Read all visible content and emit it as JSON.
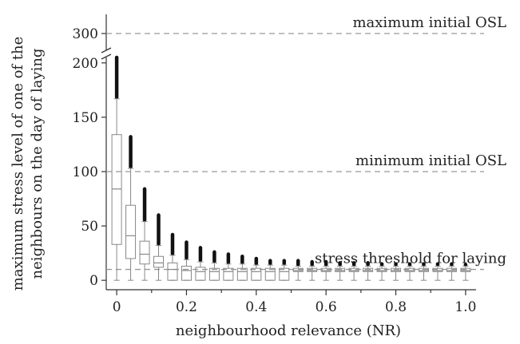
{
  "chart_data": {
    "type": "box",
    "xlabel": "neighbourhood relevance (NR)",
    "ylabel_lines": [
      "maximum stress level of one of the",
      "neighbours on the day of laying"
    ],
    "x_ticks": [
      "0",
      "0.2",
      "0.4",
      "0.6",
      "0.8",
      "1.0"
    ],
    "x_tick_values": [
      0,
      0.2,
      0.4,
      0.6,
      0.8,
      1.0
    ],
    "x_minor_ticks": [
      0.1,
      0.3,
      0.5,
      0.7,
      0.9
    ],
    "xlim": [
      -0.03,
      1.03
    ],
    "y_ticks_lower": [
      "0",
      "50",
      "100",
      "150",
      "200"
    ],
    "y_tick_values_lower": [
      0,
      50,
      100,
      150,
      200
    ],
    "ylim_lower": [
      -5,
      205
    ],
    "y_ticks_upper": [
      "300"
    ],
    "y_tick_values_upper": [
      300
    ],
    "ylim_upper": [
      290,
      315
    ],
    "axis_break": true,
    "reference_lines": [
      {
        "label": "maximum initial OSL",
        "value": 300,
        "panel": "upper"
      },
      {
        "label": "minimum initial OSL",
        "value": 100,
        "panel": "lower"
      },
      {
        "label": "stress threshold for laying",
        "value": 10,
        "panel": "lower"
      }
    ],
    "boxes": [
      {
        "x": 0.0,
        "whisker_low": 0,
        "q1": 33,
        "median": 84,
        "q3": 134,
        "whisker_high": 167,
        "outlier_max": 205
      },
      {
        "x": 0.04,
        "whisker_low": 0,
        "q1": 20,
        "median": 41,
        "q3": 69,
        "whisker_high": 103,
        "outlier_max": 132
      },
      {
        "x": 0.08,
        "whisker_low": 0,
        "q1": 15,
        "median": 24,
        "q3": 36,
        "whisker_high": 54,
        "outlier_max": 84
      },
      {
        "x": 0.12,
        "whisker_low": 0,
        "q1": 12,
        "median": 16,
        "q3": 22,
        "whisker_high": 32,
        "outlier_max": 60
      },
      {
        "x": 0.16,
        "whisker_low": 0,
        "q1": 0,
        "median": 10,
        "q3": 16,
        "whisker_high": 23,
        "outlier_max": 42
      },
      {
        "x": 0.2,
        "whisker_low": 0,
        "q1": 0,
        "median": 9,
        "q3": 13,
        "whisker_high": 19,
        "outlier_max": 35
      },
      {
        "x": 0.24,
        "whisker_low": 0,
        "q1": 0,
        "median": 8,
        "q3": 12,
        "whisker_high": 17,
        "outlier_max": 30
      },
      {
        "x": 0.28,
        "whisker_low": 0,
        "q1": 0,
        "median": 8,
        "q3": 11,
        "whisker_high": 16,
        "outlier_max": 26
      },
      {
        "x": 0.32,
        "whisker_low": 0,
        "q1": 0,
        "median": 8,
        "q3": 11,
        "whisker_high": 15,
        "outlier_max": 24
      },
      {
        "x": 0.36,
        "whisker_low": 0,
        "q1": 0,
        "median": 8,
        "q3": 11,
        "whisker_high": 15,
        "outlier_max": 22
      },
      {
        "x": 0.4,
        "whisker_low": 0,
        "q1": 0,
        "median": 8,
        "q3": 11,
        "whisker_high": 14,
        "outlier_max": 20
      },
      {
        "x": 0.44,
        "whisker_low": 0,
        "q1": 0,
        "median": 8,
        "q3": 11,
        "whisker_high": 14,
        "outlier_max": 18
      },
      {
        "x": 0.48,
        "whisker_low": 0,
        "q1": 0,
        "median": 8,
        "q3": 11,
        "whisker_high": 14,
        "outlier_max": 18
      },
      {
        "x": 0.52,
        "whisker_low": 0,
        "q1": 8,
        "median": 9,
        "q3": 11,
        "whisker_high": 13,
        "outlier_max": 18
      },
      {
        "x": 0.56,
        "whisker_low": 0,
        "q1": 8,
        "median": 9,
        "q3": 11,
        "whisker_high": 13,
        "outlier_max": 17
      },
      {
        "x": 0.6,
        "whisker_low": 0,
        "q1": 8,
        "median": 9,
        "q3": 11,
        "whisker_high": 13,
        "outlier_max": 17
      },
      {
        "x": 0.64,
        "whisker_low": 0,
        "q1": 8,
        "median": 9,
        "q3": 11,
        "whisker_high": 13,
        "outlier_max": 16
      },
      {
        "x": 0.68,
        "whisker_low": 0,
        "q1": 8,
        "median": 9,
        "q3": 11,
        "whisker_high": 13,
        "outlier_max": 16
      },
      {
        "x": 0.72,
        "whisker_low": 0,
        "q1": 8,
        "median": 9,
        "q3": 11,
        "whisker_high": 13,
        "outlier_max": 16
      },
      {
        "x": 0.76,
        "whisker_low": 0,
        "q1": 8,
        "median": 9,
        "q3": 11,
        "whisker_high": 13,
        "outlier_max": 15
      },
      {
        "x": 0.8,
        "whisker_low": 0,
        "q1": 8,
        "median": 9,
        "q3": 11,
        "whisker_high": 13,
        "outlier_max": 15
      },
      {
        "x": 0.84,
        "whisker_low": 0,
        "q1": 8,
        "median": 9,
        "q3": 11,
        "whisker_high": 13,
        "outlier_max": 15
      },
      {
        "x": 0.88,
        "whisker_low": 0,
        "q1": 8,
        "median": 9,
        "q3": 11,
        "whisker_high": 13,
        "outlier_max": 15
      },
      {
        "x": 0.92,
        "whisker_low": 0,
        "q1": 8,
        "median": 9,
        "q3": 11,
        "whisker_high": 13,
        "outlier_max": 15
      },
      {
        "x": 0.96,
        "whisker_low": 0,
        "q1": 8,
        "median": 9,
        "q3": 11,
        "whisker_high": 13,
        "outlier_max": 15
      },
      {
        "x": 1.0,
        "whisker_low": 0,
        "q1": 8,
        "median": 9,
        "q3": 11,
        "whisker_high": 13,
        "outlier_max": 14
      }
    ],
    "grid": false
  }
}
